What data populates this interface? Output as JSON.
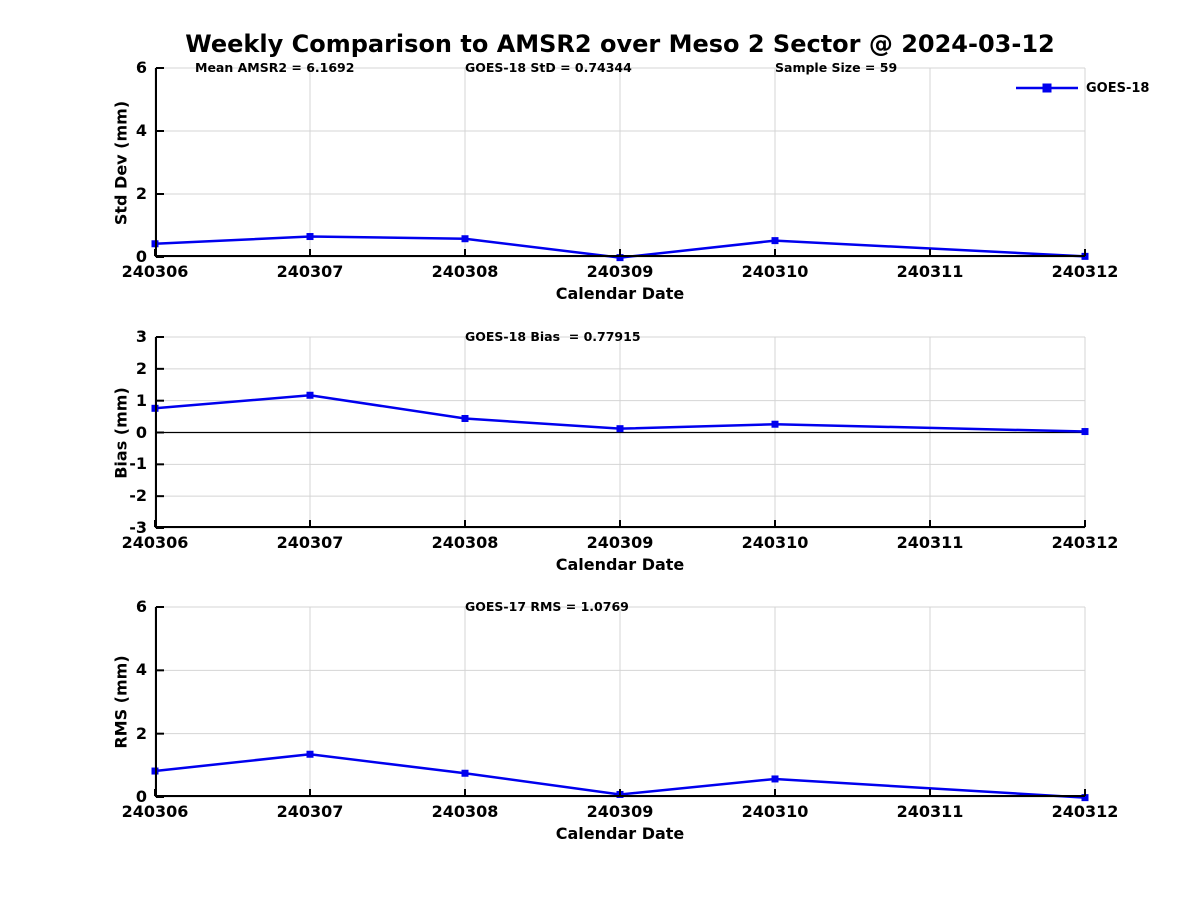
{
  "title": "Weekly Comparison to AMSR2 over Meso 2 Sector @ 2024-03-12",
  "legend": {
    "label": "GOES-18",
    "line_color": "#0000ee"
  },
  "colors": {
    "series_blue": "#0000ee",
    "grid_gray": "#d4d4d4",
    "axis_black": "#000000"
  },
  "x_axis": {
    "label": "Calendar Date",
    "ticks": [
      "240306",
      "240307",
      "240308",
      "240309",
      "240310",
      "240311",
      "240312"
    ]
  },
  "chart_data": [
    {
      "type": "line",
      "name": "std-dev-panel",
      "ylabel": "Std Dev (mm)",
      "ylim": [
        0,
        6
      ],
      "yticks": [
        0,
        2,
        4,
        6
      ],
      "grid": true,
      "zero_line": false,
      "annotations": [
        {
          "text": "Mean AMSR2 = 6.1692"
        },
        {
          "text": "GOES-18 StD = 0.74344"
        },
        {
          "text": "Sample Size = 59"
        }
      ],
      "series": [
        {
          "name": "GOES-18",
          "x": [
            "240306",
            "240307",
            "240308",
            "240309",
            "240310",
            "240312"
          ],
          "values": [
            0.42,
            0.65,
            0.58,
            -0.02,
            0.52,
            0.02
          ]
        }
      ]
    },
    {
      "type": "line",
      "name": "bias-panel",
      "ylabel": "Bias (mm)",
      "ylim": [
        -3,
        3
      ],
      "yticks": [
        -3,
        -2,
        -1,
        0,
        1,
        2,
        3
      ],
      "grid": true,
      "zero_line": true,
      "annotations": [
        {
          "text": "GOES-18 Bias  = 0.77915"
        }
      ],
      "series": [
        {
          "name": "GOES-18",
          "x": [
            "240306",
            "240307",
            "240308",
            "240309",
            "240310",
            "240312"
          ],
          "values": [
            0.76,
            1.17,
            0.44,
            0.12,
            0.26,
            0.03
          ]
        }
      ]
    },
    {
      "type": "line",
      "name": "rms-panel",
      "ylabel": "RMS (mm)",
      "ylim": [
        0,
        6
      ],
      "yticks": [
        0,
        2,
        4,
        6
      ],
      "grid": true,
      "zero_line": false,
      "annotations": [
        {
          "text": "GOES-17 RMS = 1.0769"
        }
      ],
      "series": [
        {
          "name": "GOES-18",
          "x": [
            "240306",
            "240307",
            "240308",
            "240309",
            "240310",
            "240312"
          ],
          "values": [
            0.82,
            1.35,
            0.75,
            0.08,
            0.57,
            -0.02
          ]
        }
      ]
    }
  ]
}
